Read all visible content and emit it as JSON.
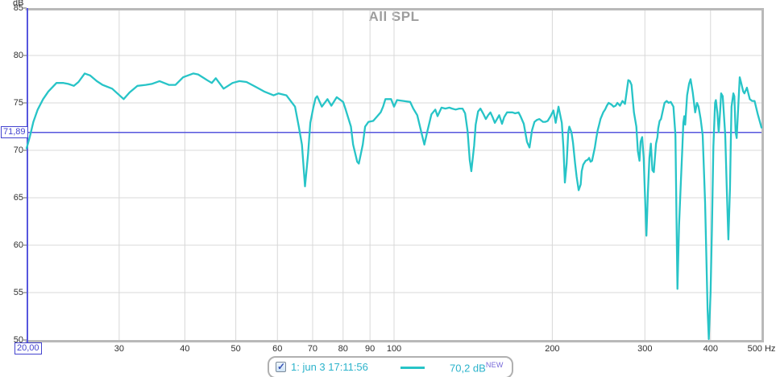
{
  "chart_data": {
    "type": "line",
    "title": "All SPL",
    "x_axis": {
      "scale": "log",
      "unit": "Hz",
      "min": 20,
      "max": 500,
      "ticks": [
        {
          "v": 30,
          "label": "30"
        },
        {
          "v": 40,
          "label": "40"
        },
        {
          "v": 50,
          "label": "50"
        },
        {
          "v": 60,
          "label": "60"
        },
        {
          "v": 70,
          "label": "70"
        },
        {
          "v": 80,
          "label": "80"
        },
        {
          "v": 90,
          "label": "90"
        },
        {
          "v": 100,
          "label": "100"
        },
        {
          "v": 200,
          "label": "200"
        },
        {
          "v": 300,
          "label": "300"
        },
        {
          "v": 400,
          "label": "400"
        },
        {
          "v": 500,
          "label": "500 Hz"
        }
      ]
    },
    "y_axis": {
      "unit": "dB",
      "min": 50,
      "max": 85,
      "ticks": [
        {
          "v": 85,
          "label": "85"
        },
        {
          "v": 80,
          "label": "80"
        },
        {
          "v": 75,
          "label": "75"
        },
        {
          "v": 70,
          "label": "70"
        },
        {
          "v": 65,
          "label": "65"
        },
        {
          "v": 60,
          "label": "60"
        },
        {
          "v": 55,
          "label": "55"
        },
        {
          "v": 50,
          "label": "50"
        }
      ]
    },
    "grid": true,
    "legend_position": "bottom-center",
    "cursor": {
      "x": 20,
      "x_label": "20,00",
      "y": 71.89,
      "y_label": "71,89"
    },
    "series": [
      {
        "name": "1: jun 3 17:11:56",
        "cursor_value": "70,2 dB",
        "points": [
          [
            20,
            70.2
          ],
          [
            20.3,
            71.5
          ],
          [
            20.6,
            73.0
          ],
          [
            21,
            74.3
          ],
          [
            21.5,
            75.4
          ],
          [
            22,
            76.2
          ],
          [
            22.8,
            77.1
          ],
          [
            23.5,
            77.1
          ],
          [
            24,
            77.0
          ],
          [
            24.6,
            76.8
          ],
          [
            25.1,
            77.2
          ],
          [
            25.8,
            78.1
          ],
          [
            26.4,
            77.9
          ],
          [
            27.2,
            77.3
          ],
          [
            27.9,
            76.9
          ],
          [
            29.1,
            76.5
          ],
          [
            30.6,
            75.4
          ],
          [
            31.4,
            76.1
          ],
          [
            32.5,
            76.8
          ],
          [
            33.7,
            76.9
          ],
          [
            34.6,
            77.0
          ],
          [
            35.8,
            77.3
          ],
          [
            37.3,
            76.9
          ],
          [
            38.4,
            76.9
          ],
          [
            39.7,
            77.7
          ],
          [
            41.5,
            78.1
          ],
          [
            42.4,
            78.0
          ],
          [
            44.1,
            77.4
          ],
          [
            45,
            77.1
          ],
          [
            45.8,
            77.6
          ],
          [
            47.4,
            76.5
          ],
          [
            49.3,
            77.1
          ],
          [
            50.8,
            77.3
          ],
          [
            52.4,
            77.2
          ],
          [
            54.5,
            76.7
          ],
          [
            56.6,
            76.2
          ],
          [
            59,
            75.8
          ],
          [
            60.3,
            76.0
          ],
          [
            62.4,
            75.8
          ],
          [
            64.8,
            74.6
          ],
          [
            65.9,
            72.5
          ],
          [
            66.8,
            70.6
          ],
          [
            67.7,
            66.2
          ],
          [
            68.6,
            69.5
          ],
          [
            69.3,
            72.9
          ],
          [
            70.2,
            74.5
          ],
          [
            70.9,
            75.5
          ],
          [
            71.4,
            75.7
          ],
          [
            72.9,
            74.6
          ],
          [
            74.7,
            75.4
          ],
          [
            76,
            74.7
          ],
          [
            77.8,
            75.6
          ],
          [
            80,
            75.1
          ],
          [
            80.8,
            74.4
          ],
          [
            82.8,
            72.5
          ],
          [
            83.6,
            70.6
          ],
          [
            85.1,
            68.8
          ],
          [
            85.7,
            68.6
          ],
          [
            87.2,
            70.6
          ],
          [
            88.1,
            72.5
          ],
          [
            89.4,
            73.0
          ],
          [
            91.3,
            73.1
          ],
          [
            94.3,
            74.0
          ],
          [
            95.3,
            74.6
          ],
          [
            96.3,
            75.4
          ],
          [
            98.7,
            75.4
          ],
          [
            100,
            74.6
          ],
          [
            101.3,
            75.3
          ],
          [
            104.2,
            75.2
          ],
          [
            107.3,
            75.1
          ],
          [
            108.8,
            74.4
          ],
          [
            110.7,
            73.7
          ],
          [
            112.6,
            72.0
          ],
          [
            114.2,
            70.6
          ],
          [
            115.8,
            72.1
          ],
          [
            117.8,
            73.8
          ],
          [
            119.8,
            74.3
          ],
          [
            121,
            73.6
          ],
          [
            123.1,
            74.5
          ],
          [
            125.2,
            74.4
          ],
          [
            127.4,
            74.5
          ],
          [
            129,
            74.4
          ],
          [
            131,
            74.3
          ],
          [
            133,
            74.4
          ],
          [
            135,
            74.4
          ],
          [
            136.5,
            73.9
          ],
          [
            138,
            72.0
          ],
          [
            139.3,
            69.0
          ],
          [
            140.3,
            67.8
          ],
          [
            142,
            70.5
          ],
          [
            143,
            72.7
          ],
          [
            144.5,
            74.1
          ],
          [
            146,
            74.4
          ],
          [
            148,
            73.8
          ],
          [
            149.5,
            73.3
          ],
          [
            151,
            73.7
          ],
          [
            152.5,
            74.0
          ],
          [
            154,
            73.5
          ],
          [
            155.5,
            72.9
          ],
          [
            157,
            73.3
          ],
          [
            158.5,
            73.7
          ],
          [
            160.5,
            72.8
          ],
          [
            162,
            73.5
          ],
          [
            164,
            74.0
          ],
          [
            166,
            74.0
          ],
          [
            168,
            74.0
          ],
          [
            170,
            73.9
          ],
          [
            172.5,
            74.0
          ],
          [
            174,
            73.6
          ],
          [
            176.5,
            72.8
          ],
          [
            179,
            70.9
          ],
          [
            181,
            70.3
          ],
          [
            183,
            72.1
          ],
          [
            185,
            73.0
          ],
          [
            187,
            73.2
          ],
          [
            189,
            73.3
          ],
          [
            192,
            73.0
          ],
          [
            194,
            73.0
          ],
          [
            196,
            73.1
          ],
          [
            198.5,
            73.6
          ],
          [
            201,
            74.2
          ],
          [
            203,
            72.9
          ],
          [
            205.5,
            74.6
          ],
          [
            208.5,
            72.9
          ],
          [
            210,
            70.3
          ],
          [
            211.3,
            66.6
          ],
          [
            213,
            68.6
          ],
          [
            214.5,
            71.9
          ],
          [
            215.5,
            72.5
          ],
          [
            217.5,
            71.9
          ],
          [
            219,
            70.8
          ],
          [
            221,
            68.6
          ],
          [
            222.5,
            67.2
          ],
          [
            224.5,
            65.8
          ],
          [
            226.5,
            66.4
          ],
          [
            227.5,
            67.8
          ],
          [
            229,
            68.5
          ],
          [
            231.5,
            68.9
          ],
          [
            233.5,
            69.0
          ],
          [
            235,
            69.2
          ],
          [
            236.5,
            68.8
          ],
          [
            238,
            68.9
          ],
          [
            241,
            70.3
          ],
          [
            242.5,
            71.3
          ],
          [
            244,
            72.1
          ],
          [
            245.5,
            72.7
          ],
          [
            247,
            73.3
          ],
          [
            250,
            74.0
          ],
          [
            252,
            74.3
          ],
          [
            254,
            74.7
          ],
          [
            256,
            75.0
          ],
          [
            259.5,
            74.8
          ],
          [
            261.5,
            74.6
          ],
          [
            264,
            74.7
          ],
          [
            266,
            75.0
          ],
          [
            269,
            74.7
          ],
          [
            272,
            75.2
          ],
          [
            275,
            74.9
          ],
          [
            279,
            77.4
          ],
          [
            281,
            77.3
          ],
          [
            283,
            76.9
          ],
          [
            286,
            74.0
          ],
          [
            289,
            72.5
          ],
          [
            291,
            69.9
          ],
          [
            293,
            68.9
          ],
          [
            294.5,
            70.9
          ],
          [
            296.5,
            71.4
          ],
          [
            298.5,
            69.2
          ],
          [
            300,
            65.5
          ],
          [
            302,
            61.0
          ],
          [
            304,
            65.5
          ],
          [
            306,
            69.2
          ],
          [
            308,
            70.7
          ],
          [
            310,
            67.9
          ],
          [
            312,
            67.7
          ],
          [
            315,
            70.7
          ],
          [
            317,
            71.4
          ],
          [
            318,
            72.3
          ],
          [
            320,
            73.1
          ],
          [
            322,
            73.3
          ],
          [
            324,
            74.0
          ],
          [
            327,
            75.0
          ],
          [
            330,
            75.2
          ],
          [
            333,
            75.0
          ],
          [
            336,
            75.1
          ],
          [
            340,
            74.6
          ],
          [
            343,
            71.6
          ],
          [
            344.5,
            63.0
          ],
          [
            346,
            55.4
          ],
          [
            348.5,
            62.1
          ],
          [
            351,
            66.4
          ],
          [
            353.5,
            70.3
          ],
          [
            355,
            72.9
          ],
          [
            356.5,
            73.6
          ],
          [
            358,
            72.7
          ],
          [
            361,
            75.8
          ],
          [
            364,
            77.0
          ],
          [
            366.5,
            77.5
          ],
          [
            370,
            76.1
          ],
          [
            374,
            74.0
          ],
          [
            377,
            75.0
          ],
          [
            379.5,
            74.6
          ],
          [
            383,
            73.3
          ],
          [
            386.5,
            71.6
          ],
          [
            390.5,
            64.5
          ],
          [
            394.8,
            53.2
          ],
          [
            397,
            50.1
          ],
          [
            400,
            55.0
          ],
          [
            402.4,
            61.7
          ],
          [
            405,
            70.4
          ],
          [
            408,
            75.0
          ],
          [
            409.5,
            75.3
          ],
          [
            412,
            74.0
          ],
          [
            414.5,
            71.9
          ],
          [
            417,
            74.0
          ],
          [
            419,
            76.0
          ],
          [
            422,
            75.7
          ],
          [
            426.5,
            71.6
          ],
          [
            429.5,
            66.0
          ],
          [
            432.5,
            60.6
          ],
          [
            435.5,
            66.0
          ],
          [
            437,
            70.4
          ],
          [
            438.5,
            74.6
          ],
          [
            442,
            76.0
          ],
          [
            444,
            75.7
          ],
          [
            446.5,
            71.9
          ],
          [
            448.5,
            71.3
          ],
          [
            451,
            74.0
          ],
          [
            454.5,
            77.7
          ],
          [
            457,
            77.2
          ],
          [
            461.5,
            76.2
          ],
          [
            464,
            76.0
          ],
          [
            469,
            76.6
          ],
          [
            475,
            75.4
          ],
          [
            480,
            75.2
          ],
          [
            485,
            75.2
          ],
          [
            492,
            73.8
          ],
          [
            500,
            72.4
          ]
        ]
      }
    ]
  },
  "legend": {
    "checkbox_checked": true,
    "name": "1: jun 3 17:11:56",
    "value": "70,2 dB",
    "badge": "NEW"
  },
  "colors": {
    "trace": "#27c4c7",
    "cursor_line": "#5656dd",
    "cursor_text": "#4343cf",
    "grid": "#d8d8d8",
    "border": "#b9b9b9",
    "title": "#9d9d9d",
    "tick_text": "#2f2f2f",
    "legend_name": "#2bb3cb",
    "legend_value": "#2bb3cb",
    "badge": "#7668d9"
  }
}
